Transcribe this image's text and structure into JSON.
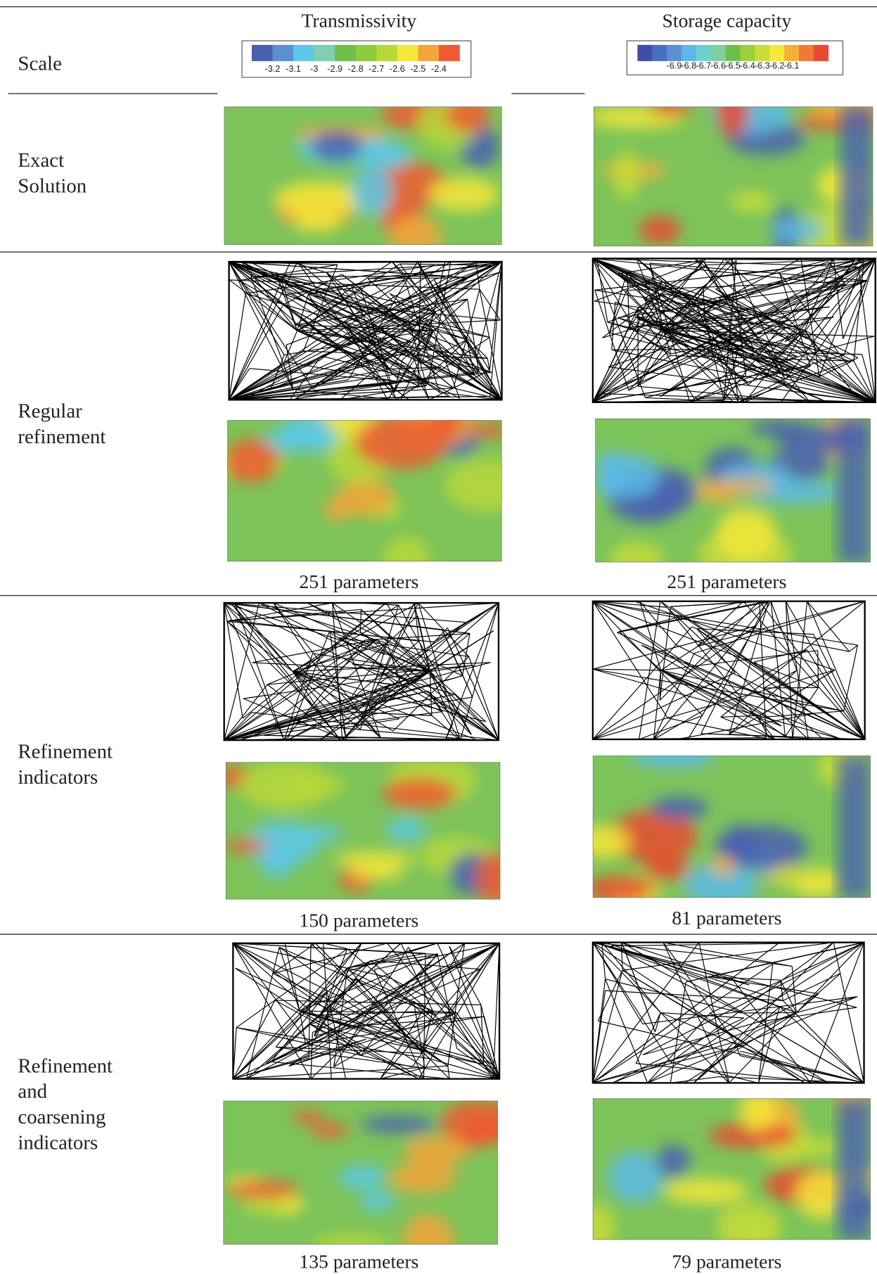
{
  "header": {
    "columns": [
      "Transmissivity",
      "Storage capacity"
    ]
  },
  "scale": {
    "label": "Scale",
    "colorbars": [
      {
        "labels": [
          "-3.2",
          "-3.1",
          "-3",
          "-2.9",
          "-2.8",
          "-2.7",
          "-2.6",
          "-2.5",
          "-2.4"
        ],
        "colors": [
          "#4a5fb0",
          "#5b8fd0",
          "#5cc8e8",
          "#7fcfb0",
          "#6cc04a",
          "#8ccc3c",
          "#b8d83a",
          "#f6e83a",
          "#f5a43a",
          "#ee5a33"
        ]
      },
      {
        "labels": [
          "-6.9",
          "-6.8",
          "-6.7",
          "-6.6",
          "-6.5",
          "-6.4",
          "-6.3",
          "-6.2",
          "-6.1"
        ],
        "colors": [
          "#3f4fa8",
          "#4a6fc0",
          "#5b8fd0",
          "#5cb8e8",
          "#6fd0d0",
          "#7fcfa0",
          "#6cc04a",
          "#9ccf3c",
          "#c8dc3a",
          "#f6e83a",
          "#f5b03a",
          "#f07a35",
          "#e84a30"
        ]
      }
    ]
  },
  "rows": [
    {
      "label": [
        "Exact",
        "Solution"
      ]
    },
    {
      "label": [
        "Regular",
        "refinement"
      ],
      "captions": [
        "251 parameters",
        "251 parameters"
      ]
    },
    {
      "label": [
        "Refinement",
        "indicators"
      ],
      "captions": [
        "150 parameters",
        "81 parameters"
      ]
    },
    {
      "label": [
        "Refinement",
        "and",
        "coarsening",
        "indicators"
      ],
      "captions": [
        "135 parameters",
        "79 parameters"
      ]
    }
  ]
}
